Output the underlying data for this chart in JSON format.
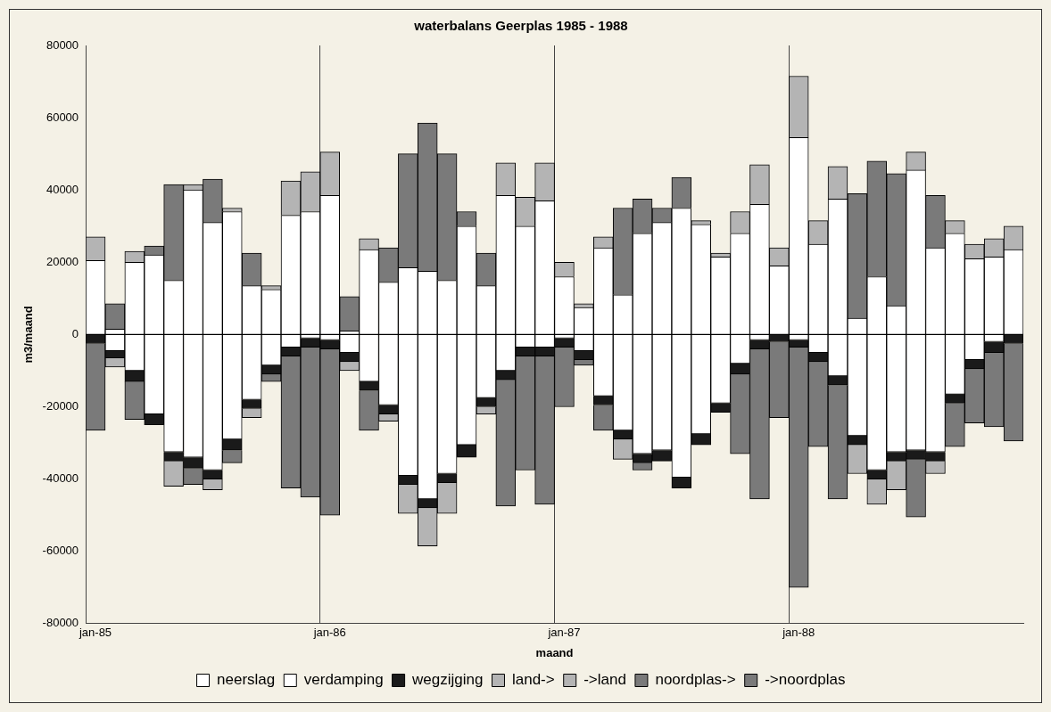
{
  "chart_data": {
    "type": "bar",
    "title": "waterbalans Geerplas 1985 - 1988",
    "xlabel": "maand",
    "ylabel": "m3/maand",
    "categories": [
      "jan-85",
      null,
      null,
      null,
      null,
      null,
      null,
      null,
      null,
      null,
      null,
      null,
      "jan-86",
      null,
      null,
      null,
      null,
      null,
      null,
      null,
      null,
      null,
      null,
      null,
      "jan-87",
      null,
      null,
      null,
      null,
      null,
      null,
      null,
      null,
      null,
      null,
      null,
      "jan-88",
      null,
      null,
      null,
      null,
      null,
      null,
      null,
      null,
      null,
      null,
      null
    ],
    "stacked": true,
    "grid": "x",
    "legend": "bottom",
    "ylim": [
      -80000,
      80000
    ],
    "yticks": [
      -80000,
      -60000,
      -40000,
      -20000,
      0,
      20000,
      40000,
      60000,
      80000
    ],
    "ref_lines": [
      {
        "axis": "y",
        "value": 0,
        "color": "#000000"
      }
    ],
    "series": [
      {
        "name": "neerslag",
        "color": "#ffffff",
        "values": [
          20500,
          1500,
          20000,
          22000,
          15000,
          40000,
          31000,
          34000,
          13500,
          12500,
          33000,
          34000,
          38500,
          1000,
          23500,
          14500,
          18500,
          17500,
          15000,
          30000,
          13500,
          38500,
          30000,
          37000,
          16000,
          7500,
          24000,
          11000,
          28000,
          31000,
          35000,
          30500,
          21500,
          28000,
          36000,
          19000,
          54500,
          25000,
          37500,
          4500,
          16000,
          8000,
          45500,
          24000,
          28000,
          21000,
          21500,
          23500
        ]
      },
      {
        "name": "verdamping",
        "color": "#ffffff",
        "values": [
          null,
          -4500,
          -10000,
          -22000,
          -32500,
          -34000,
          -37500,
          -29000,
          -18000,
          -8500,
          -3500,
          -1000,
          -1500,
          -5000,
          -13000,
          -19500,
          -39000,
          -45500,
          -38500,
          -30500,
          -17500,
          -10000,
          -3500,
          -3500,
          -1000,
          -4500,
          -17000,
          -26500,
          -33000,
          -32000,
          -39500,
          -27500,
          -19000,
          -8000,
          -1500,
          0,
          -1500,
          -5000,
          -11500,
          -28000,
          -37500,
          -32500,
          -32000,
          -32500,
          -16500,
          -7000,
          -2000,
          0
        ]
      },
      {
        "name": "wegzijging",
        "color": "#1a1a1a",
        "values": [
          -2500,
          -2000,
          -3000,
          -3000,
          -2500,
          -3000,
          -2500,
          -3000,
          -2500,
          -2500,
          -2500,
          -2500,
          -2500,
          -2500,
          -2500,
          -2500,
          -2500,
          -2500,
          -2500,
          -3500,
          -2500,
          -2500,
          -2500,
          -2500,
          -2500,
          -2500,
          -2500,
          -2500,
          -2500,
          -3000,
          -3000,
          -3000,
          -2500,
          -3000,
          -2500,
          -2000,
          -2000,
          -2500,
          -2500,
          -2500,
          -2500,
          -2500,
          -2500,
          -2500,
          -2500,
          -2500,
          -3000,
          -2500
        ]
      },
      {
        "name": "land->",
        "color": "#b4b4b4",
        "values": [
          6500,
          0,
          3000,
          0,
          0,
          1500,
          0,
          1000,
          0,
          1000,
          9500,
          11000,
          12000,
          0,
          3000,
          0,
          0,
          0,
          0,
          0,
          0,
          9000,
          8000,
          10500,
          4000,
          1000,
          3000,
          0,
          0,
          0,
          0,
          1000,
          1000,
          6000,
          11000,
          5000,
          17000,
          6500,
          9000,
          0,
          0,
          0,
          5000,
          0,
          3500,
          4000,
          5000,
          6500
        ]
      },
      {
        "name": "->land",
        "color": "#b4b4b4",
        "values": [
          0,
          -2500,
          0,
          0,
          -7000,
          0,
          -3000,
          0,
          -2500,
          0,
          0,
          0,
          0,
          -2500,
          0,
          -2000,
          -8000,
          -10500,
          -8500,
          0,
          -2000,
          0,
          0,
          0,
          0,
          0,
          0,
          -5500,
          0,
          0,
          0,
          0,
          0,
          0,
          0,
          0,
          0,
          0,
          0,
          -8000,
          -7000,
          -8000,
          0,
          -3500,
          0,
          0,
          0,
          0
        ]
      },
      {
        "name": "noordplas->",
        "color": "#7a7a7a",
        "values": [
          0,
          7000,
          0,
          2500,
          26500,
          0,
          12000,
          0,
          9000,
          0,
          0,
          0,
          0,
          9500,
          0,
          9500,
          31500,
          41000,
          35000,
          4000,
          9000,
          0,
          0,
          0,
          0,
          0,
          0,
          24000,
          9500,
          4000,
          8500,
          0,
          0,
          0,
          0,
          0,
          0,
          0,
          0,
          34500,
          32000,
          36500,
          0,
          14500,
          0,
          0,
          0,
          0
        ]
      },
      {
        "name": "->noordplas",
        "color": "#7a7a7a",
        "values": [
          -24000,
          0,
          -10500,
          0,
          0,
          -4500,
          0,
          -3500,
          0,
          -2000,
          -36500,
          -41500,
          -46000,
          0,
          -11000,
          0,
          0,
          0,
          0,
          0,
          0,
          -35000,
          -31500,
          -41000,
          -16500,
          -1500,
          -7000,
          0,
          -2000,
          0,
          0,
          0,
          0,
          -22000,
          -41500,
          -21000,
          -66500,
          -23500,
          -31500,
          0,
          0,
          0,
          -16000,
          0,
          -12000,
          -15000,
          -20500,
          -27000
        ]
      }
    ]
  }
}
